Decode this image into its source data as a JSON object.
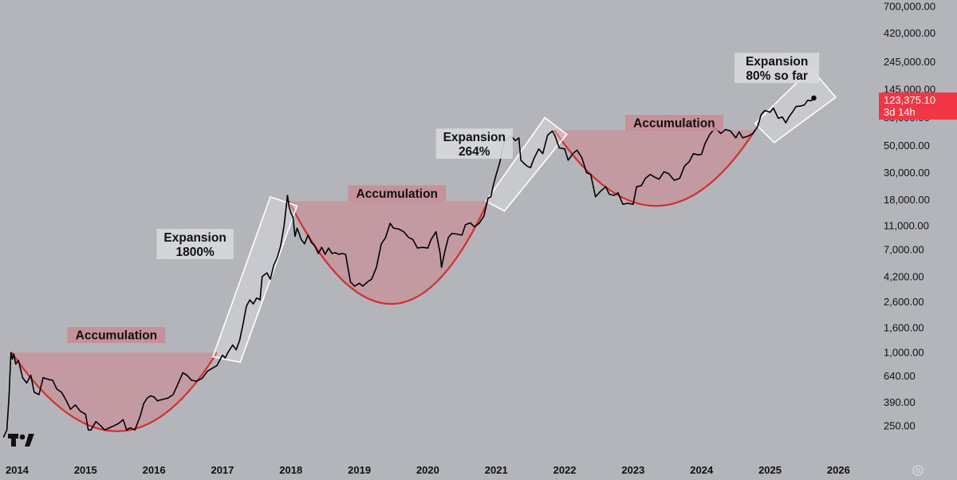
{
  "chart_data": {
    "type": "line",
    "title": "",
    "xlabel": "",
    "ylabel": "",
    "y_scale": "log",
    "ylim": [
      190,
      720000
    ],
    "xlim": [
      2013.75,
      2026.45
    ],
    "grid": false,
    "x_ticks": [
      "2014",
      "2015",
      "2016",
      "2017",
      "2018",
      "2019",
      "2020",
      "2021",
      "2022",
      "2023",
      "2024",
      "2025",
      "2026"
    ],
    "y_ticks": [
      "700,000.00",
      "420,000.00",
      "245,000.00",
      "145,000.00",
      "85,000.00",
      "50,000.00",
      "30,000.00",
      "18,000.00",
      "11,000.00",
      "7,000.00",
      "4,200.00",
      "2,600.00",
      "1,600.00",
      "1,000.00",
      "640.00",
      "390.00",
      "250.00"
    ],
    "price_badge": {
      "value": "123,375.10",
      "countdown": "3d 14h",
      "color": "#f23645"
    },
    "line_color": "#000000",
    "curve_color": "#d32f2f",
    "accumulation_fill": "#c99098",
    "series": [
      {
        "values": [
          [
            2013.8,
            200
          ],
          [
            2013.85,
            230
          ],
          [
            2013.88,
            420
          ],
          [
            2013.91,
            1000
          ],
          [
            2013.93,
            880
          ],
          [
            2013.95,
            970
          ],
          [
            2013.98,
            800
          ],
          [
            2014.02,
            860
          ],
          [
            2014.08,
            620
          ],
          [
            2014.14,
            560
          ],
          [
            2014.2,
            650
          ],
          [
            2014.25,
            470
          ],
          [
            2014.32,
            450
          ],
          [
            2014.38,
            620
          ],
          [
            2014.45,
            600
          ],
          [
            2014.52,
            590
          ],
          [
            2014.58,
            500
          ],
          [
            2014.65,
            470
          ],
          [
            2014.72,
            400
          ],
          [
            2014.78,
            340
          ],
          [
            2014.85,
            370
          ],
          [
            2014.92,
            330
          ],
          [
            2015.0,
            310
          ],
          [
            2015.04,
            230
          ],
          [
            2015.08,
            230
          ],
          [
            2015.15,
            270
          ],
          [
            2015.22,
            250
          ],
          [
            2015.28,
            230
          ],
          [
            2015.35,
            240
          ],
          [
            2015.42,
            250
          ],
          [
            2015.48,
            260
          ],
          [
            2015.55,
            280
          ],
          [
            2015.6,
            230
          ],
          [
            2015.65,
            240
          ],
          [
            2015.72,
            230
          ],
          [
            2015.8,
            300
          ],
          [
            2015.85,
            380
          ],
          [
            2015.9,
            420
          ],
          [
            2015.95,
            440
          ],
          [
            2016.0,
            430
          ],
          [
            2016.05,
            400
          ],
          [
            2016.12,
            410
          ],
          [
            2016.2,
            420
          ],
          [
            2016.28,
            450
          ],
          [
            2016.35,
            550
          ],
          [
            2016.42,
            680
          ],
          [
            2016.48,
            650
          ],
          [
            2016.55,
            590
          ],
          [
            2016.62,
            580
          ],
          [
            2016.7,
            610
          ],
          [
            2016.78,
            700
          ],
          [
            2016.85,
            740
          ],
          [
            2016.92,
            780
          ],
          [
            2017.0,
            950
          ],
          [
            2017.04,
            900
          ],
          [
            2017.08,
            1000
          ],
          [
            2017.15,
            1150
          ],
          [
            2017.2,
            1050
          ],
          [
            2017.25,
            1250
          ],
          [
            2017.3,
            1700
          ],
          [
            2017.35,
            2400
          ],
          [
            2017.4,
            2700
          ],
          [
            2017.45,
            2500
          ],
          [
            2017.5,
            2800
          ],
          [
            2017.55,
            2700
          ],
          [
            2017.58,
            4200
          ],
          [
            2017.65,
            4500
          ],
          [
            2017.7,
            4000
          ],
          [
            2017.75,
            5200
          ],
          [
            2017.8,
            6000
          ],
          [
            2017.85,
            7500
          ],
          [
            2017.9,
            11000
          ],
          [
            2017.95,
            19500
          ],
          [
            2017.97,
            16000
          ],
          [
            2018.0,
            14000
          ],
          [
            2018.03,
            13000
          ],
          [
            2018.06,
            9000
          ],
          [
            2018.09,
            10500
          ],
          [
            2018.12,
            9500
          ],
          [
            2018.15,
            8500
          ],
          [
            2018.2,
            7800
          ],
          [
            2018.25,
            9200
          ],
          [
            2018.3,
            8000
          ],
          [
            2018.35,
            7500
          ],
          [
            2018.4,
            6500
          ],
          [
            2018.45,
            7300
          ],
          [
            2018.5,
            6400
          ],
          [
            2018.55,
            7200
          ],
          [
            2018.6,
            6500
          ],
          [
            2018.65,
            6600
          ],
          [
            2018.7,
            6400
          ],
          [
            2018.75,
            6500
          ],
          [
            2018.8,
            6400
          ],
          [
            2018.87,
            3800
          ],
          [
            2018.93,
            3500
          ],
          [
            2019.0,
            3700
          ],
          [
            2019.05,
            3500
          ],
          [
            2019.12,
            3800
          ],
          [
            2019.18,
            4000
          ],
          [
            2019.25,
            5000
          ],
          [
            2019.32,
            7800
          ],
          [
            2019.38,
            8700
          ],
          [
            2019.45,
            11500
          ],
          [
            2019.5,
            10500
          ],
          [
            2019.58,
            10300
          ],
          [
            2019.65,
            9800
          ],
          [
            2019.72,
            8800
          ],
          [
            2019.78,
            8500
          ],
          [
            2019.85,
            7200
          ],
          [
            2019.92,
            7300
          ],
          [
            2020.0,
            7200
          ],
          [
            2020.05,
            8500
          ],
          [
            2020.12,
            9800
          ],
          [
            2020.18,
            6500
          ],
          [
            2020.2,
            5000
          ],
          [
            2020.25,
            6800
          ],
          [
            2020.3,
            8800
          ],
          [
            2020.35,
            9500
          ],
          [
            2020.42,
            9400
          ],
          [
            2020.5,
            9200
          ],
          [
            2020.55,
            11200
          ],
          [
            2020.62,
            11600
          ],
          [
            2020.68,
            10800
          ],
          [
            2020.75,
            11500
          ],
          [
            2020.82,
            13200
          ],
          [
            2020.88,
            18500
          ],
          [
            2020.92,
            19000
          ],
          [
            2020.96,
            24000
          ],
          [
            2021.0,
            29000
          ],
          [
            2021.03,
            33000
          ],
          [
            2021.06,
            38000
          ],
          [
            2021.09,
            48000
          ],
          [
            2021.13,
            55000
          ],
          [
            2021.18,
            58000
          ],
          [
            2021.23,
            59000
          ],
          [
            2021.28,
            55000
          ],
          [
            2021.33,
            58000
          ],
          [
            2021.36,
            38000
          ],
          [
            2021.4,
            36000
          ],
          [
            2021.45,
            34000
          ],
          [
            2021.5,
            33000
          ],
          [
            2021.55,
            39000
          ],
          [
            2021.62,
            47000
          ],
          [
            2021.68,
            43000
          ],
          [
            2021.75,
            61000
          ],
          [
            2021.82,
            66000
          ],
          [
            2021.86,
            60000
          ],
          [
            2021.92,
            48000
          ],
          [
            2022.0,
            47000
          ],
          [
            2022.05,
            38000
          ],
          [
            2022.12,
            43000
          ],
          [
            2022.18,
            46000
          ],
          [
            2022.25,
            40000
          ],
          [
            2022.32,
            30000
          ],
          [
            2022.38,
            29000
          ],
          [
            2022.45,
            19000
          ],
          [
            2022.52,
            21000
          ],
          [
            2022.6,
            23000
          ],
          [
            2022.65,
            20000
          ],
          [
            2022.72,
            19500
          ],
          [
            2022.78,
            20500
          ],
          [
            2022.85,
            16500
          ],
          [
            2022.92,
            16800
          ],
          [
            2023.0,
            16500
          ],
          [
            2023.05,
            23000
          ],
          [
            2023.12,
            23500
          ],
          [
            2023.18,
            27000
          ],
          [
            2023.25,
            29000
          ],
          [
            2023.32,
            27500
          ],
          [
            2023.38,
            26500
          ],
          [
            2023.45,
            30500
          ],
          [
            2023.52,
            29500
          ],
          [
            2023.6,
            26000
          ],
          [
            2023.68,
            27000
          ],
          [
            2023.75,
            34000
          ],
          [
            2023.82,
            37000
          ],
          [
            2023.88,
            43000
          ],
          [
            2023.95,
            42000
          ],
          [
            2024.0,
            42500
          ],
          [
            2024.05,
            52000
          ],
          [
            2024.12,
            62000
          ],
          [
            2024.2,
            70000
          ],
          [
            2024.28,
            63000
          ],
          [
            2024.35,
            68000
          ],
          [
            2024.42,
            66000
          ],
          [
            2024.5,
            58000
          ],
          [
            2024.55,
            65000
          ],
          [
            2024.6,
            58000
          ],
          [
            2024.68,
            60000
          ],
          [
            2024.75,
            63000
          ],
          [
            2024.82,
            72000
          ],
          [
            2024.87,
            90000
          ],
          [
            2024.92,
            97000
          ],
          [
            2024.96,
            96000
          ],
          [
            2025.0,
            94000
          ],
          [
            2025.05,
            102000
          ],
          [
            2025.12,
            84000
          ],
          [
            2025.18,
            86000
          ],
          [
            2025.23,
            77000
          ],
          [
            2025.27,
            85000
          ],
          [
            2025.33,
            95000
          ],
          [
            2025.38,
            105000
          ],
          [
            2025.45,
            106000
          ],
          [
            2025.5,
            108000
          ],
          [
            2025.55,
            118000
          ],
          [
            2025.6,
            117000
          ],
          [
            2025.64,
            123375
          ]
        ]
      }
    ],
    "annotations": [
      {
        "type": "accumulation",
        "label": "Accumulation",
        "rim": [
          2013.92,
          1000
        ],
        "right_x": 2016.92,
        "bottom": [
          2015.5,
          225
        ]
      },
      {
        "type": "accumulation",
        "label": "Accumulation",
        "rim": [
          2017.97,
          17500
        ],
        "right_x": 2020.88,
        "bottom": [
          2019.5,
          2500
        ]
      },
      {
        "type": "accumulation",
        "label": "Accumulation",
        "rim": [
          2021.85,
          67000
        ],
        "right_x": 2024.78,
        "bottom": [
          2023.35,
          16000
        ]
      },
      {
        "type": "expansion",
        "label": "Expansion",
        "pct": "1800%",
        "box": [
          [
            2016.86,
            920
          ],
          [
            2017.26,
            830
          ],
          [
            2018.09,
            16000
          ],
          [
            2017.7,
            19000
          ]
        ]
      },
      {
        "type": "expansion",
        "label": "Expansion",
        "pct": "264%",
        "box": [
          [
            2020.85,
            17500
          ],
          [
            2021.12,
            14500
          ],
          [
            2022.03,
            62000
          ],
          [
            2021.71,
            85000
          ]
        ]
      },
      {
        "type": "expansion",
        "label": "Expansion",
        "pct": "80% so far",
        "box": [
          [
            2024.78,
            76000
          ],
          [
            2025.06,
            53000
          ],
          [
            2025.96,
            125000
          ],
          [
            2025.6,
            215000
          ]
        ]
      }
    ],
    "annotation_labels": [
      {
        "text": "Accumulation",
        "at": [
          2015.45,
          1390
        ]
      },
      {
        "text": "Accumulation",
        "at": [
          2019.55,
          20300
        ]
      },
      {
        "text": "Accumulation",
        "at": [
          2023.6,
          77000
        ]
      },
      {
        "text": "Expansion",
        "text2": "1800%",
        "at": [
          2016.6,
          7780
        ]
      },
      {
        "text": "Expansion",
        "text2": "264%",
        "at": [
          2020.68,
          52000
        ]
      },
      {
        "text": "Expansion",
        "text2": "80% so far",
        "at": [
          2025.1,
          218000
        ]
      }
    ]
  }
}
